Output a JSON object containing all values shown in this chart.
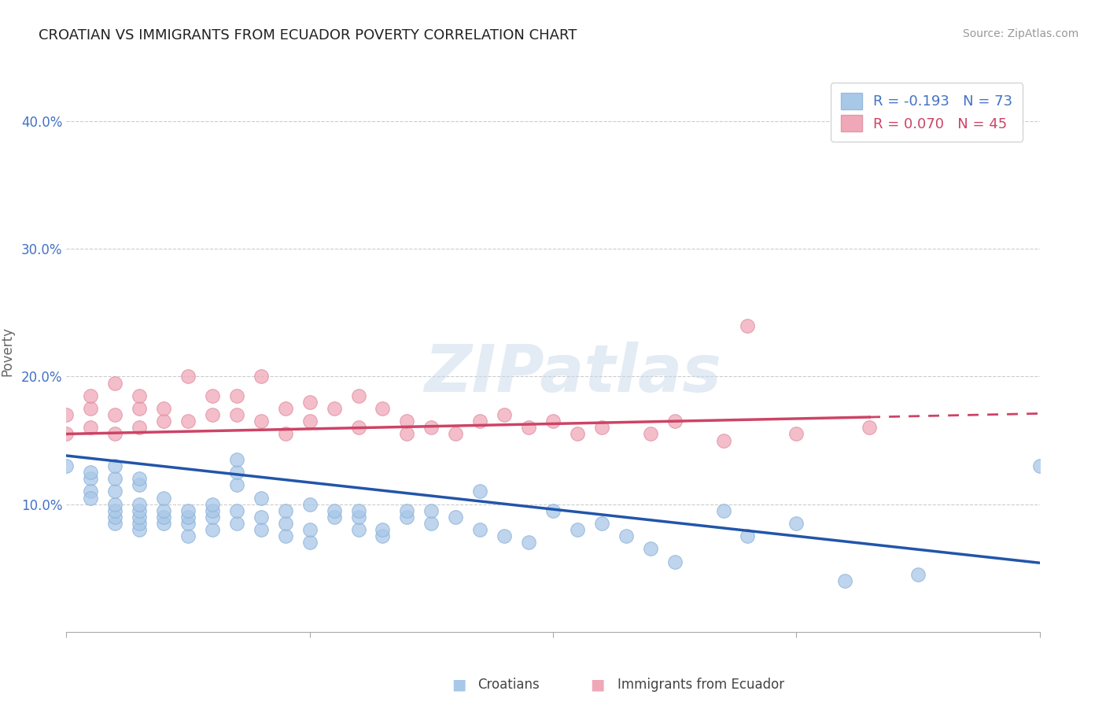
{
  "title": "CROATIAN VS IMMIGRANTS FROM ECUADOR POVERTY CORRELATION CHART",
  "source": "Source: ZipAtlas.com",
  "ylabel": "Poverty",
  "xlim": [
    0.0,
    0.4
  ],
  "ylim": [
    0.0,
    0.44
  ],
  "blue_R": -0.193,
  "blue_N": 73,
  "pink_R": 0.07,
  "pink_N": 45,
  "blue_color": "#a8c8e8",
  "pink_color": "#f0a8b8",
  "blue_line_color": "#2255aa",
  "pink_line_color": "#cc4466",
  "watermark_text": "ZIPatlas",
  "blue_intercept": 0.138,
  "blue_slope": -0.21,
  "pink_intercept": 0.155,
  "pink_slope": 0.04,
  "pink_data_extent": 0.33,
  "blue_scatter_x": [
    0.0,
    0.01,
    0.01,
    0.01,
    0.01,
    0.02,
    0.02,
    0.02,
    0.02,
    0.02,
    0.02,
    0.02,
    0.03,
    0.03,
    0.03,
    0.03,
    0.03,
    0.03,
    0.03,
    0.04,
    0.04,
    0.04,
    0.04,
    0.05,
    0.05,
    0.05,
    0.05,
    0.06,
    0.06,
    0.06,
    0.06,
    0.07,
    0.07,
    0.07,
    0.07,
    0.07,
    0.08,
    0.08,
    0.08,
    0.09,
    0.09,
    0.09,
    0.1,
    0.1,
    0.1,
    0.11,
    0.11,
    0.12,
    0.12,
    0.12,
    0.13,
    0.13,
    0.14,
    0.14,
    0.15,
    0.15,
    0.16,
    0.17,
    0.17,
    0.18,
    0.19,
    0.2,
    0.21,
    0.22,
    0.23,
    0.24,
    0.25,
    0.27,
    0.28,
    0.3,
    0.32,
    0.35,
    0.4
  ],
  "blue_scatter_y": [
    0.13,
    0.12,
    0.125,
    0.11,
    0.105,
    0.085,
    0.09,
    0.095,
    0.1,
    0.11,
    0.12,
    0.13,
    0.08,
    0.085,
    0.09,
    0.095,
    0.1,
    0.115,
    0.12,
    0.085,
    0.09,
    0.095,
    0.105,
    0.075,
    0.085,
    0.09,
    0.095,
    0.08,
    0.09,
    0.095,
    0.1,
    0.085,
    0.095,
    0.115,
    0.125,
    0.135,
    0.08,
    0.09,
    0.105,
    0.075,
    0.085,
    0.095,
    0.07,
    0.08,
    0.1,
    0.09,
    0.095,
    0.08,
    0.09,
    0.095,
    0.075,
    0.08,
    0.09,
    0.095,
    0.085,
    0.095,
    0.09,
    0.08,
    0.11,
    0.075,
    0.07,
    0.095,
    0.08,
    0.085,
    0.075,
    0.065,
    0.055,
    0.095,
    0.075,
    0.085,
    0.04,
    0.045,
    0.13
  ],
  "pink_scatter_x": [
    0.0,
    0.0,
    0.01,
    0.01,
    0.01,
    0.02,
    0.02,
    0.02,
    0.03,
    0.03,
    0.03,
    0.04,
    0.04,
    0.05,
    0.05,
    0.06,
    0.06,
    0.07,
    0.07,
    0.08,
    0.08,
    0.09,
    0.09,
    0.1,
    0.1,
    0.11,
    0.12,
    0.12,
    0.13,
    0.14,
    0.14,
    0.15,
    0.16,
    0.17,
    0.18,
    0.19,
    0.2,
    0.21,
    0.22,
    0.24,
    0.25,
    0.27,
    0.28,
    0.3,
    0.33
  ],
  "pink_scatter_y": [
    0.155,
    0.17,
    0.16,
    0.175,
    0.185,
    0.155,
    0.17,
    0.195,
    0.16,
    0.175,
    0.185,
    0.165,
    0.175,
    0.165,
    0.2,
    0.17,
    0.185,
    0.17,
    0.185,
    0.165,
    0.2,
    0.155,
    0.175,
    0.165,
    0.18,
    0.175,
    0.16,
    0.185,
    0.175,
    0.155,
    0.165,
    0.16,
    0.155,
    0.165,
    0.17,
    0.16,
    0.165,
    0.155,
    0.16,
    0.155,
    0.165,
    0.15,
    0.24,
    0.155,
    0.16
  ]
}
